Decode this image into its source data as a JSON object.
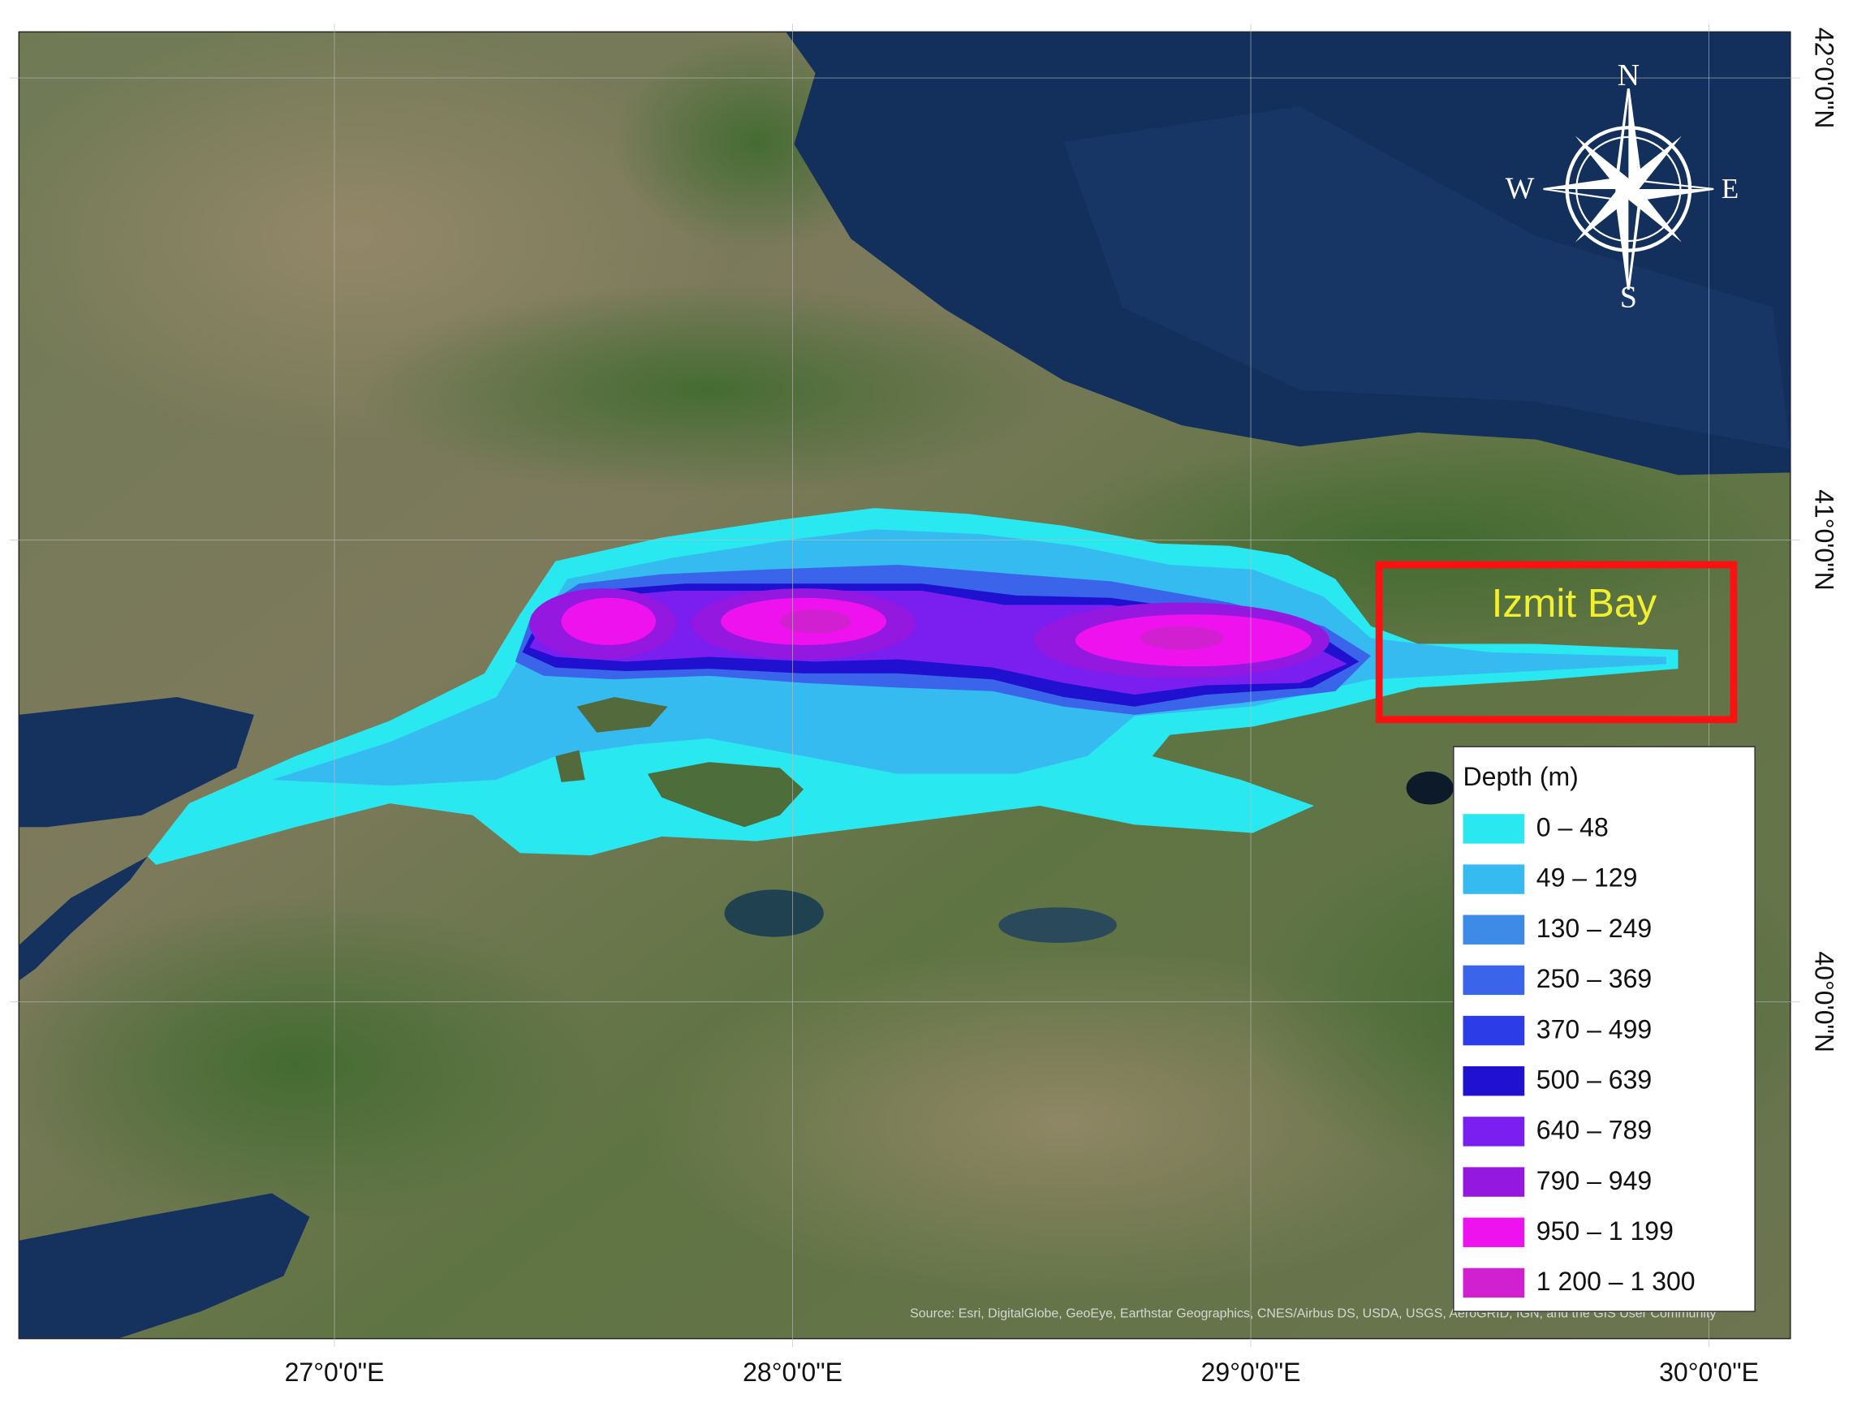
{
  "map": {
    "longitude_ticks": [
      {
        "value": 27,
        "label": "27°0'0\"E"
      },
      {
        "value": 28,
        "label": "28°0'0\"E"
      },
      {
        "value": 29,
        "label": "29°0'0\"E"
      },
      {
        "value": 30,
        "label": "30°0'0\"E"
      }
    ],
    "latitude_ticks": [
      {
        "value": 42,
        "label": "42°0'0\"N"
      },
      {
        "value": 41,
        "label": "41°0'0\"N"
      },
      {
        "value": 40,
        "label": "40°0'0\"N"
      }
    ],
    "compass": {
      "north": "N",
      "east": "E",
      "south": "S",
      "west": "W"
    },
    "annotation": "Izmit Bay",
    "source": "Source: Esri, DigitalGlobe, GeoEye, Earthstar Geographics, CNES/Airbus DS, USDA, USGS, AeroGRID, IGN, and the GIS User Community",
    "legend": {
      "title": "Depth (m)",
      "items": [
        {
          "label": "0 – 48",
          "color": "#2ae8f0"
        },
        {
          "label": "49 – 129",
          "color": "#36bbf0"
        },
        {
          "label": "130 – 249",
          "color": "#3d8be6"
        },
        {
          "label": "250 – 369",
          "color": "#3a64ea"
        },
        {
          "label": "370 – 499",
          "color": "#2c3ce6"
        },
        {
          "label": "500 – 639",
          "color": "#2010d0"
        },
        {
          "label": "640 – 789",
          "color": "#7a1ff0"
        },
        {
          "label": "790 – 949",
          "color": "#9418e0"
        },
        {
          "label": "950 – 1 199",
          "color": "#ee12ee"
        },
        {
          "label": "1 200 – 1 300",
          "color": "#d020d0"
        }
      ]
    }
  }
}
